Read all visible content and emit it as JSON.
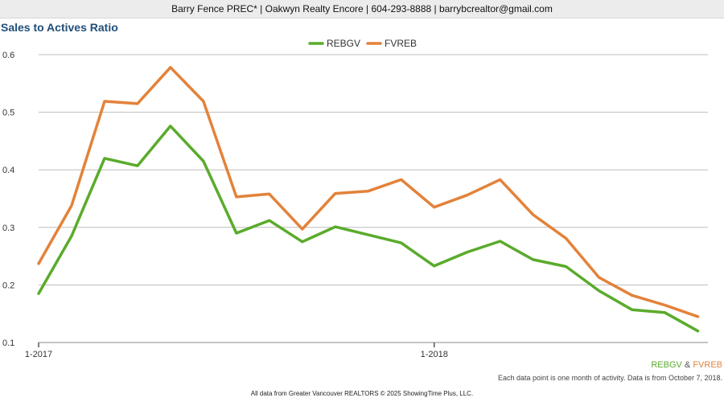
{
  "header": {
    "contact": "Barry Fence PREC* | Oakwyn Realty Encore | 604-293-8888 | barrybcrealtor@gmail.com"
  },
  "page_title": "Sales to Actives Ratio",
  "source_legend": {
    "series1": "REBGV",
    "separator": "&",
    "series2": "FVREB"
  },
  "note": "Each data point is one month of activity. Data is from October 7, 2018.",
  "footer": "All data from Greater Vancouver REALTORS © 2025 ShowingTime Plus, LLC.",
  "chart_data": {
    "type": "line",
    "title": "Sales to Actives Ratio",
    "x": [
      "1-2017",
      "2-2017",
      "3-2017",
      "4-2017",
      "5-2017",
      "6-2017",
      "7-2017",
      "8-2017",
      "9-2017",
      "10-2017",
      "11-2017",
      "12-2017",
      "1-2018",
      "2-2018",
      "3-2018",
      "4-2018",
      "5-2018",
      "6-2018",
      "7-2018",
      "8-2018",
      "9-2018"
    ],
    "x_tick_labels": [
      "1-2017",
      "1-2018"
    ],
    "series": [
      {
        "name": "REBGV",
        "color": "#5aab2b",
        "values": [
          0.185,
          0.285,
          0.42,
          0.407,
          0.476,
          0.415,
          0.29,
          0.312,
          0.275,
          0.301,
          0.287,
          0.273,
          0.233,
          0.257,
          0.276,
          0.244,
          0.232,
          0.19,
          0.157,
          0.152,
          0.12
        ]
      },
      {
        "name": "FVREB",
        "color": "#e3823a",
        "values": [
          0.237,
          0.338,
          0.519,
          0.515,
          0.578,
          0.519,
          0.353,
          0.358,
          0.297,
          0.359,
          0.363,
          0.383,
          0.335,
          0.356,
          0.383,
          0.322,
          0.281,
          0.213,
          0.182,
          0.165,
          0.145
        ]
      }
    ],
    "ylim": [
      0.1,
      0.6
    ],
    "yticks": [
      "0.1",
      "0.2",
      "0.3",
      "0.4",
      "0.5",
      "0.6"
    ],
    "grid": true,
    "legend_position": "top-center"
  }
}
